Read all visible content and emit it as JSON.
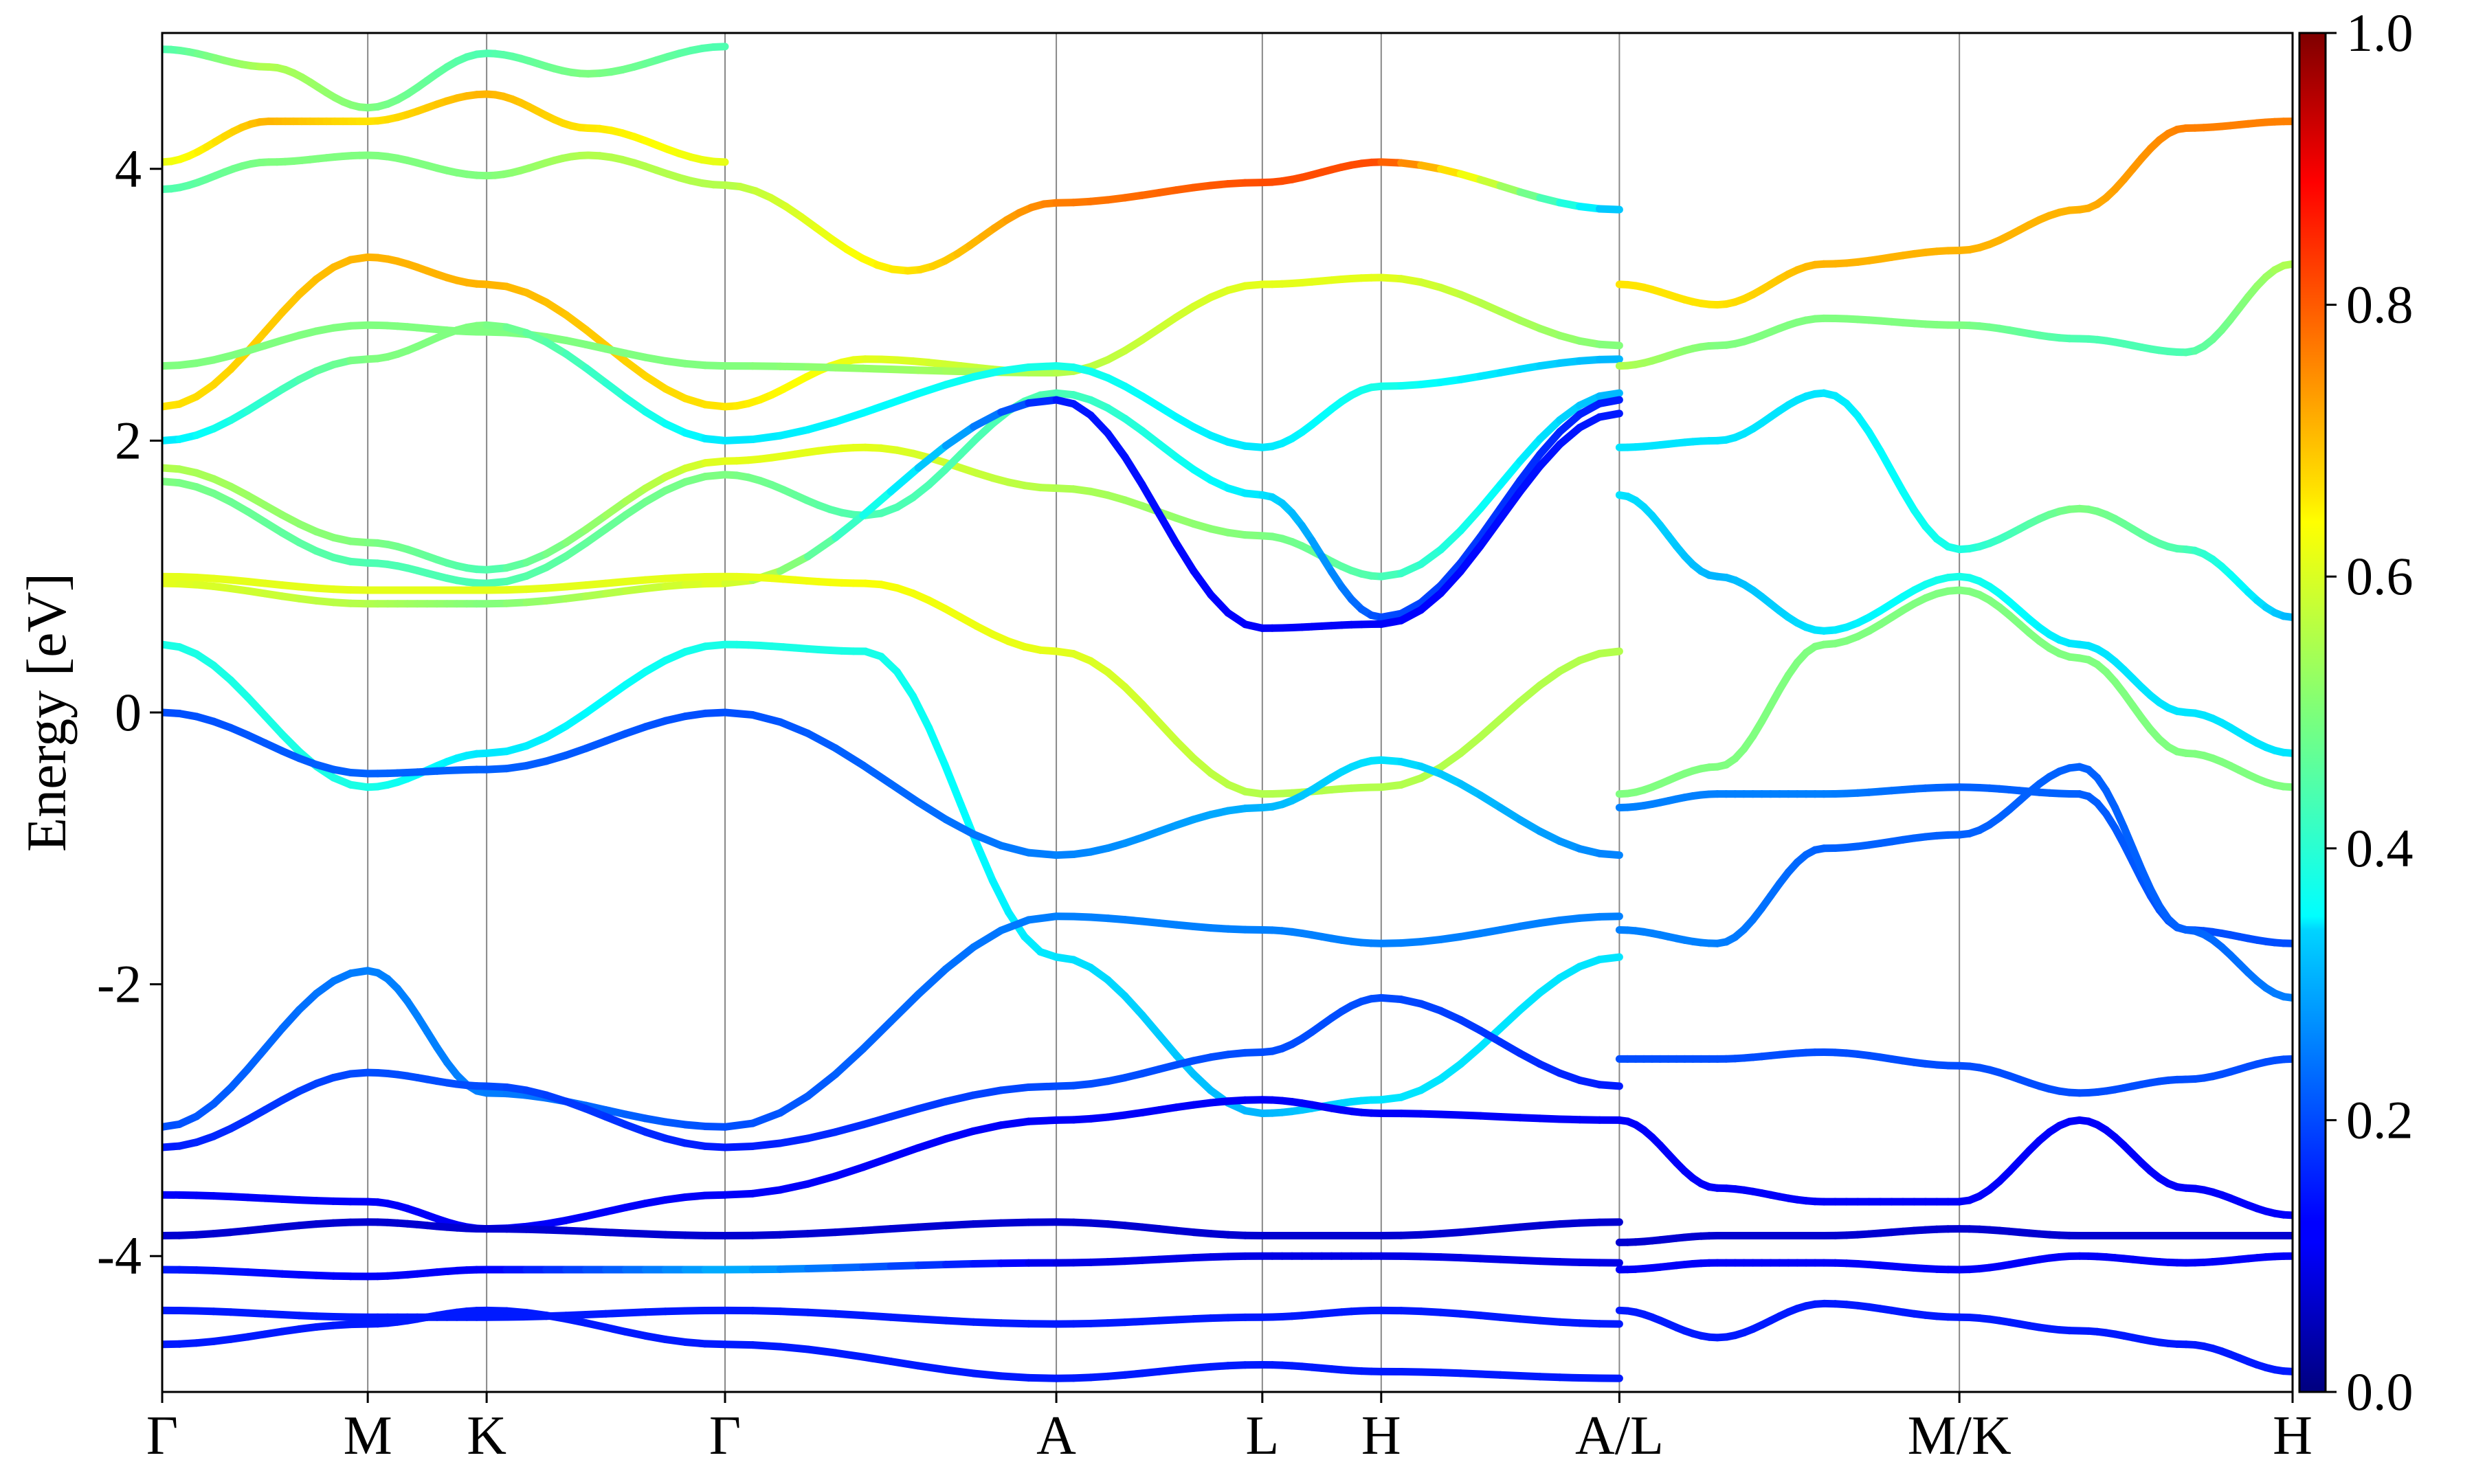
{
  "chart_data": {
    "type": "line",
    "title": "",
    "xlabel": "",
    "ylabel": "Energy [eV]",
    "ylim": [
      -5,
      5
    ],
    "xlim": [
      0,
      1
    ],
    "yticks": [
      -4,
      -2,
      0,
      2,
      4
    ],
    "ytick_labels": [
      "-4",
      "-2",
      "0",
      "2",
      "4"
    ],
    "kpoints": [
      {
        "label": "Γ",
        "x": 0.0
      },
      {
        "label": "M",
        "x": 0.0965
      },
      {
        "label": "K",
        "x": 0.1523
      },
      {
        "label": "Γ",
        "x": 0.2642
      },
      {
        "label": "A",
        "x": 0.4197
      },
      {
        "label": "L",
        "x": 0.5164
      },
      {
        "label": "H",
        "x": 0.5722
      },
      {
        "label": "A/L",
        "x": 0.684
      },
      {
        "label": "M/K",
        "x": 0.8436
      },
      {
        "label": "H",
        "x": 1.0
      }
    ],
    "colorbar": {
      "colormap": "jet",
      "range": [
        0.0,
        1.0
      ],
      "ticks": [
        "0.0",
        "0.2",
        "0.4",
        "0.6",
        "0.8",
        "1.0"
      ]
    },
    "series": [
      {
        "x": [
          0,
          0.05,
          0.0965,
          0.1523,
          0.2,
          0.2642,
          0.35,
          0.4197,
          0.5164,
          0.5722,
          0.684
        ],
        "y": [
          3.85,
          4.05,
          4.1,
          3.95,
          4.1,
          3.88,
          3.25,
          3.75,
          3.9,
          4.05,
          3.7
        ],
        "w": [
          0.45,
          0.5,
          0.5,
          0.5,
          0.55,
          0.55,
          0.65,
          0.75,
          0.8,
          0.8,
          0.3
        ]
      },
      {
        "x": [
          0,
          0.05,
          0.0965,
          0.1523,
          0.2,
          0.2642
        ],
        "y": [
          4.05,
          4.35,
          4.35,
          4.55,
          4.3,
          4.05
        ],
        "w": [
          0.6,
          0.7,
          0.65,
          0.7,
          0.65,
          0.6
        ]
      },
      {
        "x": [
          0,
          0.05,
          0.0965,
          0.1523,
          0.2,
          0.2642
        ],
        "y": [
          4.88,
          4.75,
          4.45,
          4.85,
          4.7,
          4.9
        ],
        "w": [
          0.45,
          0.55,
          0.5,
          0.45,
          0.5,
          0.45
        ]
      },
      {
        "x": [
          0,
          0.0965,
          0.1523,
          0.2642,
          0.33,
          0.4197
        ],
        "y": [
          2.25,
          3.35,
          3.15,
          2.25,
          2.6,
          2.5
        ],
        "w": [
          0.65,
          0.7,
          0.7,
          0.65,
          0.6,
          0.55
        ]
      },
      {
        "x": [
          0,
          0.0965,
          0.1523,
          0.2642,
          0.4197,
          0.5164,
          0.5722,
          0.684
        ],
        "y": [
          2.55,
          2.85,
          2.8,
          2.55,
          2.5,
          3.15,
          3.2,
          2.7
        ],
        "w": [
          0.5,
          0.5,
          0.5,
          0.5,
          0.55,
          0.6,
          0.6,
          0.5
        ]
      },
      {
        "x": [
          0,
          0.0965,
          0.1523,
          0.2642,
          0.4197,
          0.5164,
          0.5722,
          0.684
        ],
        "y": [
          2.0,
          2.6,
          2.85,
          2.0,
          2.55,
          1.95,
          2.4,
          2.6
        ],
        "w": [
          0.35,
          0.5,
          0.5,
          0.35,
          0.4,
          0.35,
          0.4,
          0.3
        ]
      },
      {
        "x": [
          0,
          0.0965,
          0.1523,
          0.2642,
          0.33,
          0.4197,
          0.5164,
          0.5722,
          0.684
        ],
        "y": [
          1.8,
          1.25,
          1.05,
          1.85,
          1.95,
          1.65,
          1.3,
          1.0,
          2.35
        ],
        "w": [
          0.55,
          0.5,
          0.45,
          0.6,
          0.6,
          0.55,
          0.5,
          0.45,
          0.3
        ]
      },
      {
        "x": [
          0,
          0.0965,
          0.1523,
          0.2642,
          0.33,
          0.4197,
          0.5164,
          0.5722,
          0.684
        ],
        "y": [
          1.7,
          1.1,
          0.95,
          1.75,
          1.45,
          2.35,
          1.6,
          0.7,
          2.3
        ],
        "w": [
          0.5,
          0.45,
          0.45,
          0.5,
          0.45,
          0.45,
          0.35,
          0.2,
          0.15
        ]
      },
      {
        "x": [
          0,
          0.0965,
          0.1523,
          0.2642,
          0.4197,
          0.5164,
          0.5722,
          0.684
        ],
        "y": [
          0.95,
          0.8,
          0.8,
          0.95,
          2.3,
          0.62,
          0.65,
          2.2
        ],
        "w": [
          0.6,
          0.55,
          0.5,
          0.6,
          0.15,
          0.12,
          0.12,
          0.15
        ]
      },
      {
        "x": [
          0,
          0.0965,
          0.1523,
          0.2642,
          0.33,
          0.4197,
          0.5164,
          0.5722,
          0.684
        ],
        "y": [
          0.5,
          -0.55,
          -0.3,
          0.5,
          0.45,
          -1.8,
          -2.95,
          -2.85,
          -1.8
        ],
        "w": [
          0.4,
          0.4,
          0.35,
          0.4,
          0.4,
          0.35,
          0.3,
          0.35,
          0.35
        ]
      },
      {
        "x": [
          0,
          0.0965,
          0.1523,
          0.2642,
          0.33,
          0.4197,
          0.5164,
          0.5722,
          0.684
        ],
        "y": [
          1.0,
          0.9,
          0.9,
          1.0,
          0.95,
          0.45,
          -0.6,
          -0.55,
          0.45
        ],
        "w": [
          0.6,
          0.6,
          0.6,
          0.6,
          0.62,
          0.6,
          0.55,
          0.55,
          0.55
        ]
      },
      {
        "x": [
          0,
          0.0965,
          0.1523,
          0.2642,
          0.4197,
          0.5164,
          0.5722,
          0.684
        ],
        "y": [
          0.0,
          -0.45,
          -0.42,
          0.0,
          -1.05,
          -0.7,
          -0.35,
          -1.05
        ],
        "w": [
          0.2,
          0.22,
          0.22,
          0.2,
          0.25,
          0.3,
          0.35,
          0.25
        ]
      },
      {
        "x": [
          0,
          0.0965,
          0.1523,
          0.2642,
          0.4197,
          0.5164,
          0.5722,
          0.684
        ],
        "y": [
          -3.05,
          -1.9,
          -2.8,
          -3.05,
          -1.5,
          -1.6,
          -1.7,
          -1.5
        ],
        "w": [
          0.2,
          0.25,
          0.25,
          0.2,
          0.25,
          0.25,
          0.25,
          0.25
        ]
      },
      {
        "x": [
          0,
          0.0965,
          0.1523,
          0.2642,
          0.4197,
          0.5164,
          0.5722,
          0.684
        ],
        "y": [
          -3.2,
          -2.65,
          -2.75,
          -3.2,
          -2.75,
          -2.5,
          -2.1,
          -2.75
        ],
        "w": [
          0.15,
          0.2,
          0.2,
          0.15,
          0.2,
          0.2,
          0.2,
          0.15
        ]
      },
      {
        "x": [
          0,
          0.0965,
          0.1523,
          0.2642,
          0.4197,
          0.5164,
          0.5722,
          0.684
        ],
        "y": [
          -3.55,
          -3.6,
          -3.8,
          -3.55,
          -3.0,
          -2.85,
          -2.95,
          -3.0
        ],
        "w": [
          0.12,
          0.12,
          0.12,
          0.12,
          0.12,
          0.12,
          0.12,
          0.12
        ]
      },
      {
        "x": [
          0,
          0.0965,
          0.1523,
          0.2642,
          0.4197,
          0.5164,
          0.5722,
          0.684
        ],
        "y": [
          -3.85,
          -3.75,
          -3.8,
          -3.85,
          -3.75,
          -3.85,
          -3.85,
          -3.75
        ],
        "w": [
          0.08,
          0.08,
          0.08,
          0.08,
          0.08,
          0.08,
          0.08,
          0.08
        ]
      },
      {
        "x": [
          0,
          0.0965,
          0.1523,
          0.2642,
          0.4197,
          0.5164,
          0.5722,
          0.684
        ],
        "y": [
          -4.1,
          -4.15,
          -4.1,
          -4.1,
          -4.05,
          -4.0,
          -4.0,
          -4.05
        ],
        "w": [
          0.15,
          0.12,
          0.12,
          0.3,
          0.1,
          0.1,
          0.1,
          0.1
        ]
      },
      {
        "x": [
          0,
          0.0965,
          0.1523,
          0.2642,
          0.4197,
          0.5164,
          0.5722,
          0.684
        ],
        "y": [
          -4.4,
          -4.45,
          -4.45,
          -4.4,
          -4.5,
          -4.45,
          -4.4,
          -4.5
        ],
        "w": [
          0.15,
          0.15,
          0.15,
          0.15,
          0.15,
          0.15,
          0.15,
          0.15
        ]
      },
      {
        "x": [
          0,
          0.0965,
          0.1523,
          0.2642,
          0.4197,
          0.5164,
          0.5722,
          0.684
        ],
        "y": [
          -4.65,
          -4.5,
          -4.4,
          -4.65,
          -4.9,
          -4.8,
          -4.85,
          -4.9
        ],
        "w": [
          0.15,
          0.15,
          0.15,
          0.15,
          0.15,
          0.15,
          0.15,
          0.15
        ]
      },
      {
        "x": [
          0.684,
          0.73,
          0.78,
          0.8436,
          0.9,
          0.95,
          1.0
        ],
        "y": [
          3.15,
          3.0,
          3.3,
          3.4,
          3.7,
          4.3,
          4.35
        ],
        "w": [
          0.65,
          0.65,
          0.7,
          0.7,
          0.7,
          0.75,
          0.75
        ]
      },
      {
        "x": [
          0.684,
          0.73,
          0.78,
          0.8436,
          0.9,
          0.95,
          1.0
        ],
        "y": [
          2.55,
          2.7,
          2.9,
          2.85,
          2.75,
          2.65,
          3.3
        ],
        "w": [
          0.55,
          0.5,
          0.5,
          0.5,
          0.45,
          0.45,
          0.55
        ]
      },
      {
        "x": [
          0.684,
          0.73,
          0.78,
          0.8436,
          0.9,
          0.95,
          1.0
        ],
        "y": [
          1.95,
          2.0,
          2.35,
          1.2,
          1.5,
          1.2,
          0.7
        ],
        "w": [
          0.35,
          0.35,
          0.35,
          0.4,
          0.5,
          0.45,
          0.3
        ]
      },
      {
        "x": [
          0.684,
          0.73,
          0.78,
          0.8436,
          0.9,
          0.95,
          1.0
        ],
        "y": [
          1.6,
          1.0,
          0.6,
          1.0,
          0.5,
          0.0,
          -0.3
        ],
        "w": [
          0.35,
          0.3,
          0.35,
          0.4,
          0.35,
          0.35,
          0.35
        ]
      },
      {
        "x": [
          0.684,
          0.73,
          0.78,
          0.8436,
          0.9,
          0.95,
          1.0
        ],
        "y": [
          -0.6,
          -0.4,
          0.5,
          0.9,
          0.4,
          -0.3,
          -0.55
        ],
        "w": [
          0.5,
          0.5,
          0.5,
          0.5,
          0.5,
          0.5,
          0.5
        ]
      },
      {
        "x": [
          0.684,
          0.73,
          0.78,
          0.8436,
          0.9,
          0.95,
          1.0
        ],
        "y": [
          -0.7,
          -0.6,
          -0.6,
          -0.55,
          -0.6,
          -1.6,
          -1.7
        ],
        "w": [
          0.25,
          0.25,
          0.25,
          0.22,
          0.22,
          0.2,
          0.2
        ]
      },
      {
        "x": [
          0.684,
          0.73,
          0.78,
          0.8436,
          0.9,
          0.95,
          1.0
        ],
        "y": [
          -1.6,
          -1.7,
          -1.0,
          -0.9,
          -0.4,
          -1.6,
          -2.1
        ],
        "w": [
          0.25,
          0.25,
          0.22,
          0.22,
          0.22,
          0.22,
          0.25
        ]
      },
      {
        "x": [
          0.684,
          0.73,
          0.78,
          0.8436,
          0.9,
          0.95,
          1.0
        ],
        "y": [
          -2.55,
          -2.55,
          -2.5,
          -2.6,
          -2.8,
          -2.7,
          -2.55
        ],
        "w": [
          0.2,
          0.2,
          0.2,
          0.2,
          0.2,
          0.2,
          0.2
        ]
      },
      {
        "x": [
          0.684,
          0.73,
          0.78,
          0.8436,
          0.9,
          0.95,
          1.0
        ],
        "y": [
          -3.0,
          -3.5,
          -3.6,
          -3.6,
          -3.0,
          -3.5,
          -3.7
        ],
        "w": [
          0.12,
          0.12,
          0.12,
          0.12,
          0.12,
          0.12,
          0.12
        ]
      },
      {
        "x": [
          0.684,
          0.73,
          0.78,
          0.8436,
          0.9,
          0.95,
          1.0
        ],
        "y": [
          -3.9,
          -3.85,
          -3.85,
          -3.8,
          -3.85,
          -3.85,
          -3.85
        ],
        "w": [
          0.08,
          0.08,
          0.08,
          0.08,
          0.08,
          0.08,
          0.08
        ]
      },
      {
        "x": [
          0.684,
          0.73,
          0.78,
          0.8436,
          0.9,
          0.95,
          1.0
        ],
        "y": [
          -4.1,
          -4.05,
          -4.05,
          -4.1,
          -4.0,
          -4.05,
          -4.0
        ],
        "w": [
          0.12,
          0.12,
          0.12,
          0.12,
          0.12,
          0.12,
          0.12
        ]
      },
      {
        "x": [
          0.684,
          0.73,
          0.78,
          0.8436,
          0.9,
          0.95,
          1.0
        ],
        "y": [
          -4.4,
          -4.6,
          -4.35,
          -4.45,
          -4.55,
          -4.65,
          -4.85
        ],
        "w": [
          0.15,
          0.15,
          0.15,
          0.15,
          0.15,
          0.15,
          0.15
        ]
      }
    ]
  }
}
